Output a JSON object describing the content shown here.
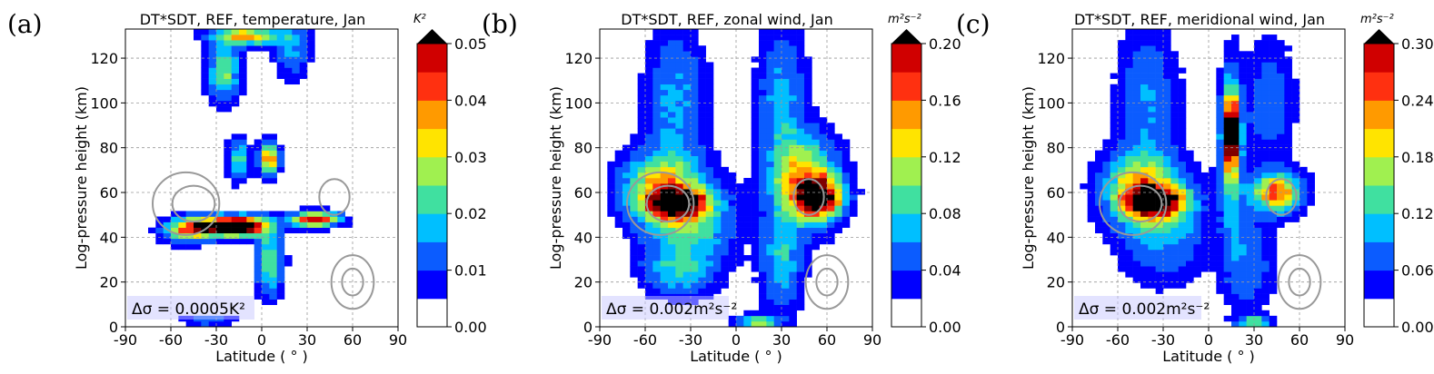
{
  "chart_data": [
    {
      "type": "heatmap",
      "panel_label": "(a)",
      "title": "DT*SDT, REF, temperature, Jan",
      "xlabel": "Latitude ($^\\circ$)",
      "xlabel_text": "Latitude (",
      "xlabel_unit": "°",
      "xlabel_close": ")",
      "ylabel": "Log-pressure height (km)",
      "xlim": [
        -90,
        90
      ],
      "ylim": [
        0,
        133
      ],
      "xticks": [
        -90,
        -60,
        -30,
        0,
        30,
        60,
        90
      ],
      "yticks": [
        0,
        20,
        40,
        60,
        80,
        100,
        120
      ],
      "grid": true,
      "colorbar": {
        "unit": "K²",
        "vmin": 0,
        "vmax": 0.05,
        "ticks": [
          "0.00",
          "0.01",
          "0.02",
          "0.03",
          "0.04",
          "0.05"
        ],
        "extend": "max"
      },
      "annotation": "Δσ = 0.0005K²",
      "blobs": [
        {
          "lat": -30,
          "z": 45,
          "w": 18,
          "h": 4,
          "v": 0.052
        },
        {
          "lat": -10,
          "z": 45,
          "w": 14,
          "h": 4,
          "v": 0.05
        },
        {
          "lat": -50,
          "z": 43,
          "w": 14,
          "h": 5,
          "v": 0.025
        },
        {
          "lat": 35,
          "z": 48,
          "w": 14,
          "h": 3,
          "v": 0.045
        },
        {
          "lat": 5,
          "z": 30,
          "w": 8,
          "h": 14,
          "v": 0.02
        },
        {
          "lat": 5,
          "z": 75,
          "w": 6,
          "h": 6,
          "v": 0.035
        },
        {
          "lat": -15,
          "z": 75,
          "w": 6,
          "h": 8,
          "v": 0.02
        },
        {
          "lat": -25,
          "z": 115,
          "w": 10,
          "h": 12,
          "v": 0.02
        },
        {
          "lat": -10,
          "z": 130,
          "w": 20,
          "h": 4,
          "v": 0.03
        },
        {
          "lat": 20,
          "z": 125,
          "w": 10,
          "h": 12,
          "v": 0.012
        },
        {
          "lat": -35,
          "z": 3,
          "w": 15,
          "h": 2,
          "v": 0.01
        }
      ]
    },
    {
      "type": "heatmap",
      "panel_label": "(b)",
      "title": "DT*SDT, REF, zonal wind, Jan",
      "xlabel": "Latitude ($^\\circ$)",
      "xlabel_text": "Latitude (",
      "xlabel_unit": "°",
      "xlabel_close": ")",
      "ylabel": "Log-pressure height (km)",
      "xlim": [
        -90,
        90
      ],
      "ylim": [
        0,
        133
      ],
      "xticks": [
        -90,
        -60,
        -30,
        0,
        30,
        60,
        90
      ],
      "yticks": [
        0,
        20,
        40,
        60,
        80,
        100,
        120
      ],
      "grid": true,
      "colorbar": {
        "unit": "m²s⁻²",
        "vmin": 0,
        "vmax": 0.2,
        "ticks": [
          "0.00",
          "0.04",
          "0.08",
          "0.12",
          "0.16",
          "0.20"
        ],
        "extend": "max"
      },
      "annotation": "Δσ = 0.002m²s⁻²",
      "blobs": [
        {
          "lat": -38,
          "z": 55,
          "w": 18,
          "h": 6,
          "v": 0.2
        },
        {
          "lat": -50,
          "z": 62,
          "w": 22,
          "h": 14,
          "v": 0.12
        },
        {
          "lat": -30,
          "z": 45,
          "w": 25,
          "h": 20,
          "v": 0.07
        },
        {
          "lat": -40,
          "z": 100,
          "w": 18,
          "h": 30,
          "v": 0.045
        },
        {
          "lat": 55,
          "z": 58,
          "w": 14,
          "h": 8,
          "v": 0.2
        },
        {
          "lat": 45,
          "z": 65,
          "w": 20,
          "h": 18,
          "v": 0.12
        },
        {
          "lat": 30,
          "z": 100,
          "w": 14,
          "h": 30,
          "v": 0.05
        },
        {
          "lat": 30,
          "z": 30,
          "w": 12,
          "h": 20,
          "v": 0.06
        },
        {
          "lat": -40,
          "z": 25,
          "w": 20,
          "h": 10,
          "v": 0.045
        },
        {
          "lat": 15,
          "z": 2,
          "w": 12,
          "h": 3,
          "v": 0.09
        }
      ]
    },
    {
      "type": "heatmap",
      "panel_label": "(c)",
      "title": "DT*SDT, REF, meridional wind, Jan",
      "xlabel": "Latitude ($^\\circ$)",
      "xlabel_text": "Latitude (",
      "xlabel_unit": "°",
      "xlabel_close": ")",
      "ylabel": "Log-pressure height (km)",
      "xlim": [
        -90,
        90
      ],
      "ylim": [
        0,
        133
      ],
      "xticks": [
        -90,
        -60,
        -30,
        0,
        30,
        60,
        90
      ],
      "yticks": [
        0,
        20,
        40,
        60,
        80,
        100,
        120
      ],
      "grid": true,
      "colorbar": {
        "unit": "m²s⁻²",
        "vmin": 0,
        "vmax": 0.3,
        "ticks": [
          "0.00",
          "0.06",
          "0.12",
          "0.18",
          "0.24",
          "0.30"
        ],
        "extend": "max"
      },
      "annotation": "Δσ = 0.002m²s⁻²",
      "blobs": [
        {
          "lat": -35,
          "z": 56,
          "w": 18,
          "h": 6,
          "v": 0.3
        },
        {
          "lat": -45,
          "z": 62,
          "w": 22,
          "h": 14,
          "v": 0.18
        },
        {
          "lat": -30,
          "z": 45,
          "w": 25,
          "h": 20,
          "v": 0.08
        },
        {
          "lat": -40,
          "z": 100,
          "w": 18,
          "h": 30,
          "v": 0.06
        },
        {
          "lat": 15,
          "z": 88,
          "w": 4,
          "h": 14,
          "v": 0.33
        },
        {
          "lat": 15,
          "z": 80,
          "w": 7,
          "h": 30,
          "v": 0.15
        },
        {
          "lat": 45,
          "z": 60,
          "w": 15,
          "h": 8,
          "v": 0.22
        },
        {
          "lat": 40,
          "z": 100,
          "w": 15,
          "h": 25,
          "v": 0.05
        },
        {
          "lat": 25,
          "z": 30,
          "w": 15,
          "h": 20,
          "v": 0.06
        },
        {
          "lat": 30,
          "z": 2,
          "w": 10,
          "h": 3,
          "v": 0.12
        }
      ]
    }
  ]
}
